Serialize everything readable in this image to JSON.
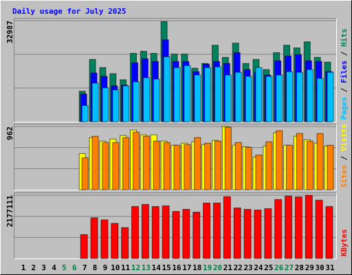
{
  "chart_data": [
    {
      "type": "bar",
      "title": "Daily usage for July 2025",
      "separator": "/",
      "ylim": [
        0,
        32987
      ],
      "yticks": [
        32987
      ],
      "grid": true,
      "series": [
        {
          "name": "Hits",
          "color": "#00805c",
          "values": [
            null,
            null,
            null,
            null,
            null,
            null,
            9950,
            20330,
            17680,
            15690,
            13700,
            22320,
            22990,
            22320,
            32700,
            22100,
            22100,
            17460,
            19010,
            24970,
            21000,
            25640,
            19010,
            20330,
            17020,
            22540,
            24970,
            24090,
            26080,
            21000,
            19450
          ]
        },
        {
          "name": "Files",
          "color": "#0000ff",
          "values": [
            null,
            null,
            null,
            null,
            null,
            null,
            9060,
            15900,
            14810,
            11710,
            11940,
            19230,
            20550,
            19670,
            26740,
            19670,
            19670,
            16350,
            18790,
            19670,
            19010,
            22540,
            17020,
            16130,
            15250,
            19890,
            21440,
            21880,
            19890,
            19670,
            16350
          ]
        },
        {
          "name": "Pages",
          "color": "#00c0ff",
          "values": [
            null,
            null,
            null,
            null,
            null,
            null,
            5300,
            12600,
            11050,
            10390,
            11710,
            13040,
            14370,
            13920,
            21220,
            17680,
            18340,
            15250,
            17680,
            17900,
            15250,
            16130,
            14810,
            17680,
            14810,
            15250,
            16350,
            16130,
            17020,
            14140,
            16130
          ]
        }
      ]
    },
    {
      "type": "bar",
      "separator": "/",
      "ylim": [
        0,
        962
      ],
      "yticks": [
        962
      ],
      "grid": true,
      "series": [
        {
          "name": "Visits",
          "color": "#ffff00",
          "values": [
            null,
            null,
            null,
            null,
            null,
            null,
            550,
            793,
            740,
            772,
            825,
            909,
            835,
            835,
            740,
            677,
            708,
            730,
            687,
            751,
            962,
            677,
            656,
            497,
            666,
            867,
            677,
            814,
            761,
            708,
            666
          ]
        },
        {
          "name": "Sites",
          "color": "#ff8000",
          "values": [
            null,
            null,
            null,
            null,
            null,
            null,
            486,
            814,
            719,
            719,
            793,
            877,
            814,
            740,
            719,
            677,
            687,
            793,
            708,
            740,
            951,
            719,
            645,
            529,
            730,
            898,
            677,
            856,
            740,
            856,
            677
          ]
        }
      ]
    },
    {
      "type": "bar",
      "ylim": [
        0,
        2177111
      ],
      "yticks": [
        2177111
      ],
      "grid": true,
      "categories": [
        "1",
        "2",
        "3",
        "4",
        "5",
        "6",
        "7",
        "8",
        "9",
        "10",
        "11",
        "12",
        "13",
        "14",
        "15",
        "16",
        "17",
        "18",
        "19",
        "20",
        "21",
        "22",
        "23",
        "24",
        "25",
        "26",
        "27",
        "28",
        "29",
        "30",
        "31"
      ],
      "category_colors": [
        "#000000",
        "#000000",
        "#000000",
        "#000000",
        "#008040",
        "#008040",
        "#000000",
        "#000000",
        "#000000",
        "#000000",
        "#000000",
        "#008040",
        "#008040",
        "#000000",
        "#000000",
        "#000000",
        "#000000",
        "#000000",
        "#008040",
        "#008040",
        "#000000",
        "#000000",
        "#000000",
        "#000000",
        "#000000",
        "#008040",
        "#008040",
        "#000000",
        "#000000",
        "#000000",
        "#000000"
      ],
      "series": [
        {
          "name": "KBytes",
          "color": "#ff0000",
          "values": [
            null,
            null,
            null,
            null,
            null,
            null,
            822000,
            1403000,
            1330000,
            1210000,
            1064000,
            1790000,
            1862000,
            1790000,
            1814000,
            1621000,
            1693000,
            1597000,
            1911000,
            1911000,
            2130000,
            1742000,
            1693000,
            1669000,
            1717000,
            2032000,
            2150000,
            2120000,
            2177111,
            2008000,
            1790000
          ]
        }
      ]
    }
  ]
}
